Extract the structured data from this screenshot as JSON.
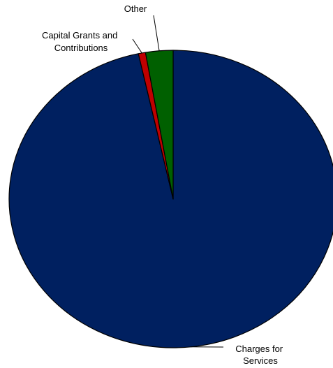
{
  "chart_data": {
    "type": "pie",
    "labels": [
      {
        "lines": [
          "Charges for",
          "Services"
        ]
      },
      {
        "lines": [
          "Capital Grants and",
          "Contributions"
        ]
      },
      {
        "lines": [
          "Other"
        ]
      }
    ],
    "slices": [
      {
        "label": "Charges for Services",
        "value": 96.6,
        "color": "#002060"
      },
      {
        "label": "Capital Grants and Contributions",
        "value": 0.7,
        "color": "#C00000"
      },
      {
        "label": "Other",
        "value": 2.7,
        "color": "#006000"
      }
    ],
    "start_angle_deg": 0,
    "direction": "clockwise"
  }
}
